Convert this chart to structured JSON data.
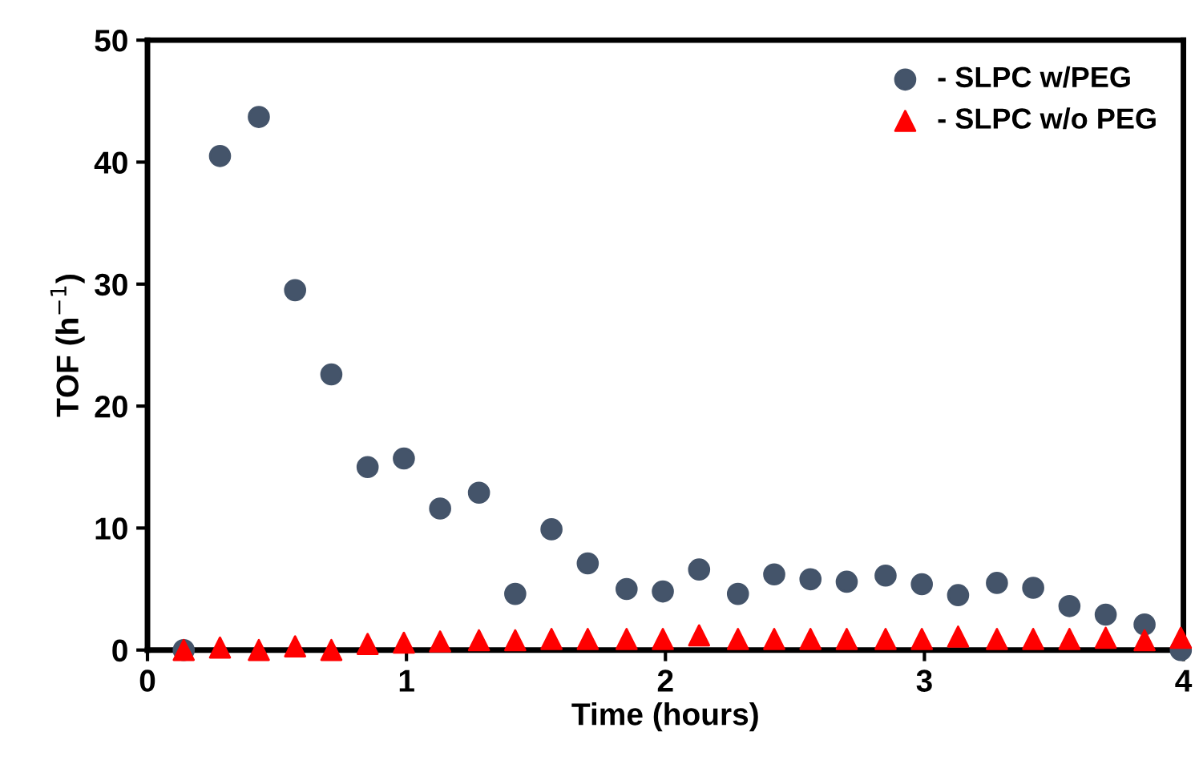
{
  "chart_data": {
    "type": "scatter",
    "xlabel": "Time (hours)",
    "ylabel": "TOF (h$^{−1}$)",
    "xlim": [
      0,
      4
    ],
    "xticks": [
      0,
      1,
      2,
      3,
      4
    ],
    "ylim": [
      0,
      50
    ],
    "yticks": [
      0,
      10,
      20,
      30,
      40,
      50
    ],
    "grid": false,
    "legend": "top right",
    "series": [
      {
        "name": "- SLPC w/PEG",
        "color": "#44546a",
        "marker": "circle",
        "x": [
          0.14,
          0.28,
          0.43,
          0.57,
          0.71,
          0.85,
          0.99,
          1.13,
          1.28,
          1.42,
          1.56,
          1.7,
          1.85,
          1.99,
          2.13,
          2.28,
          2.42,
          2.56,
          2.7,
          2.85,
          2.99,
          3.13,
          3.28,
          3.42,
          3.56,
          3.7,
          3.85,
          3.99
        ],
        "values": [
          0,
          40.5,
          43.7,
          29.5,
          22.6,
          15.0,
          15.7,
          11.6,
          12.9,
          4.6,
          9.9,
          7.1,
          5.0,
          4.8,
          6.6,
          4.6,
          6.2,
          5.8,
          5.6,
          6.1,
          5.4,
          4.5,
          5.5,
          5.1,
          3.6,
          2.9,
          2.1,
          0
        ]
      },
      {
        "name": "- SLPC w/o PEG",
        "color": "#ff0000",
        "marker": "triangle",
        "x": [
          0.14,
          0.28,
          0.43,
          0.57,
          0.71,
          0.85,
          0.99,
          1.13,
          1.28,
          1.42,
          1.56,
          1.7,
          1.85,
          1.99,
          2.13,
          2.28,
          2.42,
          2.56,
          2.7,
          2.85,
          2.99,
          3.13,
          3.28,
          3.42,
          3.56,
          3.7,
          3.85,
          3.99
        ],
        "values": [
          0,
          0.2,
          0,
          0.3,
          0,
          0.5,
          0.6,
          0.7,
          0.8,
          0.8,
          0.9,
          0.9,
          0.9,
          0.9,
          1.2,
          0.9,
          0.9,
          0.9,
          0.9,
          0.9,
          0.9,
          1.1,
          0.9,
          0.9,
          0.9,
          1.0,
          0.8,
          1.0
        ]
      }
    ]
  }
}
